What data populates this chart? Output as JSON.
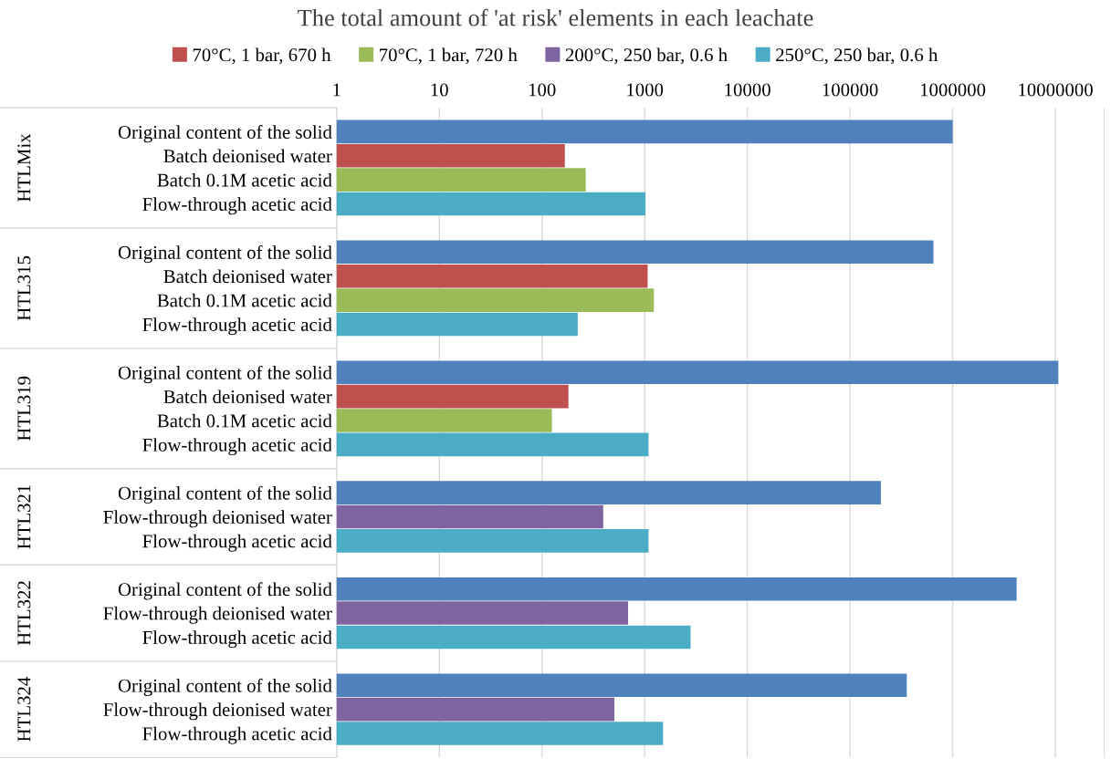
{
  "chart_data": {
    "type": "bar",
    "orientation": "horizontal",
    "title": "The total amount of 'at risk' elements in each leachate",
    "categories": [
      "Original content of the solid",
      "Batch deionised water",
      "Batch 0.1M acetic acid",
      "Flow-through acetic acid",
      "Original content of the solid",
      "Batch deionised water",
      "Batch 0.1M acetic acid",
      "Flow-through acetic acid",
      "Original content of the solid",
      "Batch deionised water",
      "Batch 0.1M acetic acid",
      "Flow-through acetic acid",
      "Original content of the solid",
      "Flow-through deionised water",
      "Flow-through acetic acid",
      "Original content of the solid",
      "Flow-through deionised water",
      "Flow-through acetic acid",
      "Original content of the solid",
      "Flow-through deionised water",
      "Flow-through acetic acid"
    ],
    "annotations": [
      "HTLMix",
      "HTL315",
      "HTL319",
      "HTL321",
      "HTL322",
      "HTL324"
    ],
    "series": [
      {
        "color": "#4f81bd",
        "values": [
          1000000,
          null,
          null,
          null,
          650000,
          null,
          null,
          null,
          10700000,
          null,
          null,
          null,
          200000,
          null,
          null,
          4200000,
          null,
          null,
          357000,
          null,
          null
        ]
      },
      {
        "name": "70°C, 1 bar, 670 h",
        "color": "#c0504d",
        "values": [
          null,
          167,
          null,
          null,
          null,
          1070,
          null,
          null,
          null,
          181,
          null,
          null,
          null,
          null,
          null,
          null,
          null,
          null,
          null,
          null,
          null
        ]
      },
      {
        "name": "70°C, 1 bar, 720 h",
        "color": "#9bbb59",
        "values": [
          null,
          null,
          267,
          null,
          null,
          null,
          1230,
          null,
          null,
          null,
          125,
          null,
          null,
          null,
          null,
          null,
          null,
          null,
          null,
          null,
          null
        ]
      },
      {
        "name": "200°C, 250 bar, 0.6 h",
        "color": "#8064a2",
        "values": [
          null,
          null,
          null,
          null,
          null,
          null,
          null,
          null,
          null,
          null,
          null,
          null,
          null,
          395,
          null,
          null,
          690,
          null,
          null,
          507,
          null
        ]
      },
      {
        "name": "250°C, 250 bar, 0.6 h",
        "color": "#4bacc6",
        "values": [
          null,
          null,
          null,
          1020,
          null,
          null,
          null,
          223,
          null,
          null,
          null,
          1090,
          null,
          null,
          1090,
          null,
          null,
          2800,
          null,
          null,
          1510
        ]
      }
    ],
    "log": "x",
    "xlim": [
      1,
      30000000
    ],
    "xticks": [
      1,
      10,
      100,
      1000,
      10000,
      100000,
      1000000,
      10000000
    ],
    "grid": "x",
    "legend": "top"
  }
}
